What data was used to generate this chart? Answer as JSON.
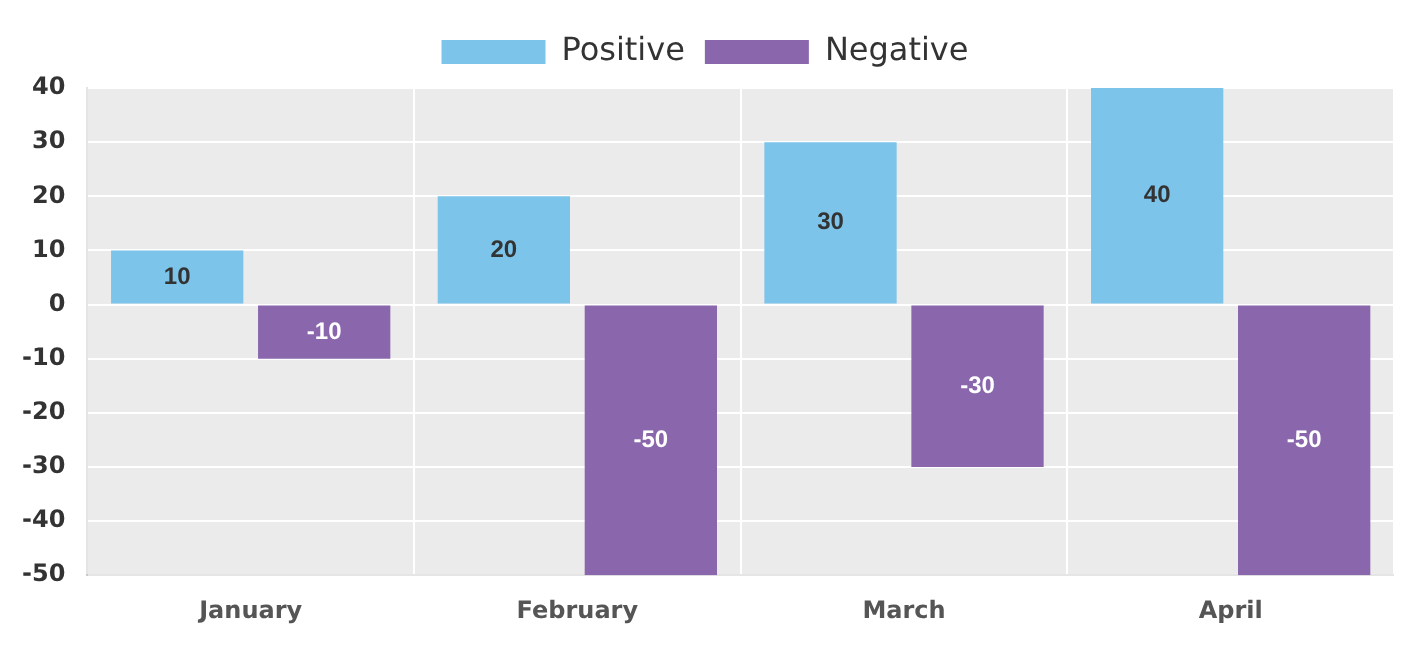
{
  "chart_data": {
    "type": "bar",
    "categories": [
      "January",
      "February",
      "March",
      "April"
    ],
    "series": [
      {
        "name": "Positive",
        "color": "#7dc4ea",
        "values": [
          10,
          20,
          30,
          40
        ]
      },
      {
        "name": "Negative",
        "color": "#8a67ad",
        "values": [
          -10,
          -50,
          -30,
          -50
        ]
      }
    ],
    "ylim": [
      -50,
      40
    ],
    "yticks": [
      -50,
      -40,
      -30,
      -20,
      -10,
      0,
      10,
      20,
      30,
      40
    ],
    "grid": true,
    "legend": "top",
    "data_labels": true
  }
}
